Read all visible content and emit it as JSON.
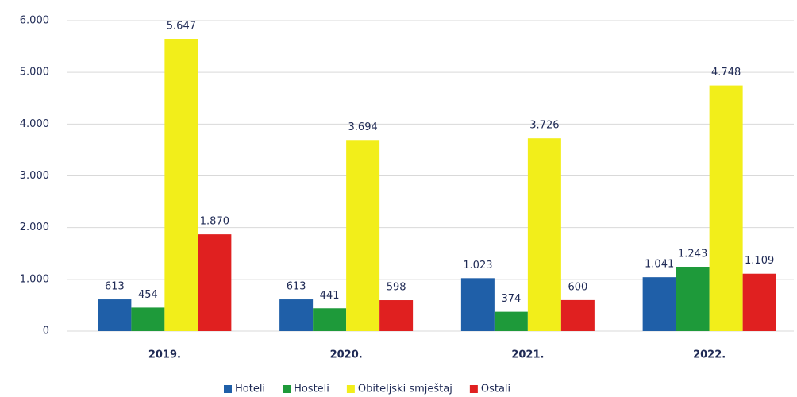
{
  "chart_data": {
    "type": "bar",
    "categories": [
      "2019.",
      "2020.",
      "2021.",
      "2022."
    ],
    "series": [
      {
        "name": "Hoteli",
        "color": "#1f5fa8",
        "values": [
          613,
          613,
          1023,
          1041
        ],
        "value_labels": [
          "613",
          "613",
          "1.023",
          "1.041"
        ]
      },
      {
        "name": "Hosteli",
        "color": "#1e9a3a",
        "values": [
          454,
          441,
          374,
          1243
        ],
        "value_labels": [
          "454",
          "441",
          "374",
          "1.243"
        ]
      },
      {
        "name": "Obiteljski smještaj",
        "color": "#f2ee1a",
        "values": [
          5647,
          3694,
          3726,
          4748
        ],
        "value_labels": [
          "5.647",
          "3.694",
          "3.726",
          "4.748"
        ]
      },
      {
        "name": "Ostali",
        "color": "#e02020",
        "values": [
          1870,
          598,
          600,
          1109
        ],
        "value_labels": [
          "1.870",
          "598",
          "600",
          "1.109"
        ]
      }
    ],
    "ylim": [
      0,
      6000
    ],
    "yticks": [
      0,
      {
        "value": 1000,
        "label": "1.000"
      },
      {
        "value": 2000,
        "label": "2.000"
      },
      {
        "value": 3000,
        "label": "3.000"
      },
      {
        "value": 4000,
        "label": "4.000"
      },
      {
        "value": 5000,
        "label": "5.000"
      },
      {
        "value": 6000,
        "label": "6.000"
      }
    ],
    "grid": true,
    "legend": "bottom"
  }
}
